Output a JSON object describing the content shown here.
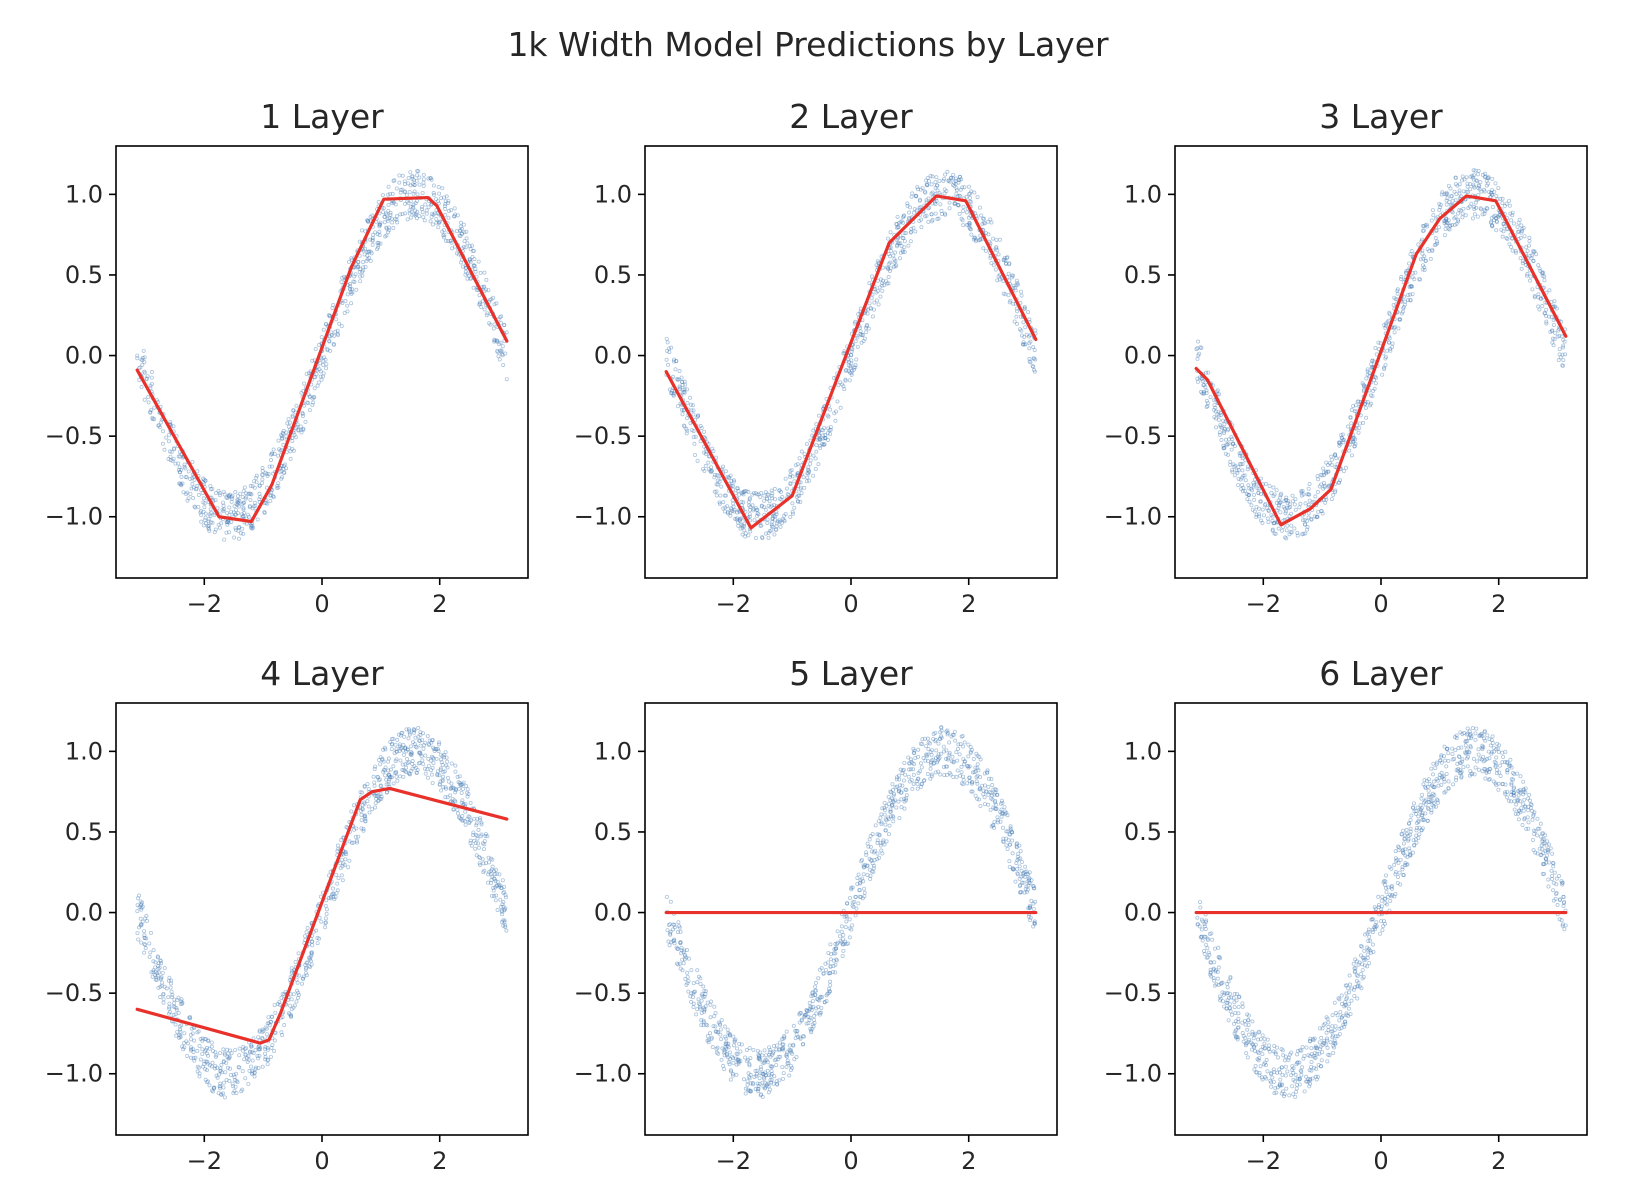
{
  "figure": {
    "suptitle": "1k Width Model Predictions by Layer"
  },
  "colors": {
    "prediction": "#e8312a",
    "scatter": "#4a7fb5"
  },
  "chart_data": [
    {
      "type": "line",
      "title": "1 Layer",
      "xlim": [
        -3.5,
        3.5
      ],
      "ylim": [
        -1.38,
        1.3
      ],
      "xticks": [
        -2,
        0,
        2
      ],
      "xticklabels": [
        "−2",
        "0",
        "2"
      ],
      "yticks": [
        1.0,
        0.5,
        0.0,
        -0.5,
        -1.0
      ],
      "yticklabels": [
        "1.0",
        "0.5",
        "0.0",
        "−0.5",
        "−1.0"
      ],
      "scatter_series": {
        "name": "data",
        "function": "sin(x) + noise",
        "x_range": [
          -3.14,
          3.14
        ],
        "noise_amplitude": 0.15,
        "count": 1000
      },
      "series": [
        {
          "x": [
            -3.14,
            -1.75,
            -1.2,
            -0.85,
            0.5,
            1.05,
            1.8,
            1.95,
            3.14
          ],
          "y": [
            -0.09,
            -1.0,
            -1.03,
            -0.8,
            0.55,
            0.97,
            0.98,
            0.93,
            0.09
          ]
        }
      ]
    },
    {
      "type": "line",
      "title": "2 Layer",
      "xlim": [
        -3.5,
        3.5
      ],
      "ylim": [
        -1.38,
        1.3
      ],
      "xticks": [
        -2,
        0,
        2
      ],
      "xticklabels": [
        "−2",
        "0",
        "2"
      ],
      "yticks": [
        1.0,
        0.5,
        0.0,
        -0.5,
        -1.0
      ],
      "yticklabels": [
        "1.0",
        "0.5",
        "0.0",
        "−0.5",
        "−1.0"
      ],
      "scatter_series": {
        "name": "data",
        "function": "sin(x) + noise",
        "x_range": [
          -3.14,
          3.14
        ],
        "noise_amplitude": 0.15,
        "count": 1000
      },
      "series": [
        {
          "x": [
            -3.14,
            -1.7,
            -1.0,
            0.65,
            1.45,
            1.95,
            3.14
          ],
          "y": [
            -0.1,
            -1.07,
            -0.87,
            0.7,
            0.99,
            0.96,
            0.1
          ]
        }
      ]
    },
    {
      "type": "line",
      "title": "3 Layer",
      "xlim": [
        -3.5,
        3.5
      ],
      "ylim": [
        -1.38,
        1.3
      ],
      "xticks": [
        -2,
        0,
        2
      ],
      "xticklabels": [
        "−2",
        "0",
        "2"
      ],
      "yticks": [
        1.0,
        0.5,
        0.0,
        -0.5,
        -1.0
      ],
      "yticklabels": [
        "1.0",
        "0.5",
        "0.0",
        "−0.5",
        "−1.0"
      ],
      "scatter_series": {
        "name": "data",
        "function": "sin(x) + noise",
        "x_range": [
          -3.14,
          3.14
        ],
        "noise_amplitude": 0.15,
        "count": 1000
      },
      "series": [
        {
          "x": [
            -3.14,
            -2.95,
            -1.7,
            -1.2,
            -0.85,
            0.6,
            1.0,
            1.45,
            1.95,
            3.14
          ],
          "y": [
            -0.08,
            -0.15,
            -1.05,
            -0.95,
            -0.83,
            0.63,
            0.85,
            0.99,
            0.96,
            0.12
          ]
        }
      ]
    },
    {
      "type": "line",
      "title": "4 Layer",
      "xlim": [
        -3.5,
        3.5
      ],
      "ylim": [
        -1.38,
        1.3
      ],
      "xticks": [
        -2,
        0,
        2
      ],
      "xticklabels": [
        "−2",
        "0",
        "2"
      ],
      "yticks": [
        1.0,
        0.5,
        0.0,
        -0.5,
        -1.0
      ],
      "yticklabels": [
        "1.0",
        "0.5",
        "0.0",
        "−0.5",
        "−1.0"
      ],
      "scatter_series": {
        "name": "data",
        "function": "sin(x) + noise",
        "x_range": [
          -3.14,
          3.14
        ],
        "noise_amplitude": 0.15,
        "count": 1000
      },
      "series": [
        {
          "x": [
            -3.14,
            -1.05,
            -0.9,
            -0.7,
            0.65,
            0.85,
            1.15,
            3.14
          ],
          "y": [
            -0.6,
            -0.81,
            -0.79,
            -0.62,
            0.7,
            0.75,
            0.77,
            0.58
          ]
        }
      ]
    },
    {
      "type": "line",
      "title": "5 Layer",
      "xlim": [
        -3.5,
        3.5
      ],
      "ylim": [
        -1.38,
        1.3
      ],
      "xticks": [
        -2,
        0,
        2
      ],
      "xticklabels": [
        "−2",
        "0",
        "2"
      ],
      "yticks": [
        1.0,
        0.5,
        0.0,
        -0.5,
        -1.0
      ],
      "yticklabels": [
        "1.0",
        "0.5",
        "0.0",
        "−0.5",
        "−1.0"
      ],
      "scatter_series": {
        "name": "data",
        "function": "sin(x) + noise",
        "x_range": [
          -3.14,
          3.14
        ],
        "noise_amplitude": 0.15,
        "count": 1000
      },
      "series": [
        {
          "x": [
            -3.14,
            3.14
          ],
          "y": [
            0.0,
            0.0
          ]
        }
      ]
    },
    {
      "type": "line",
      "title": "6 Layer",
      "xlim": [
        -3.5,
        3.5
      ],
      "ylim": [
        -1.38,
        1.3
      ],
      "xticks": [
        -2,
        0,
        2
      ],
      "xticklabels": [
        "−2",
        "0",
        "2"
      ],
      "yticks": [
        1.0,
        0.5,
        0.0,
        -0.5,
        -1.0
      ],
      "yticklabels": [
        "1.0",
        "0.5",
        "0.0",
        "−0.5",
        "−1.0"
      ],
      "scatter_series": {
        "name": "data",
        "function": "sin(x) + noise",
        "x_range": [
          -3.14,
          3.14
        ],
        "noise_amplitude": 0.15,
        "count": 1000
      },
      "series": [
        {
          "x": [
            -3.14,
            3.14
          ],
          "y": [
            0.0,
            0.0
          ]
        }
      ]
    }
  ]
}
